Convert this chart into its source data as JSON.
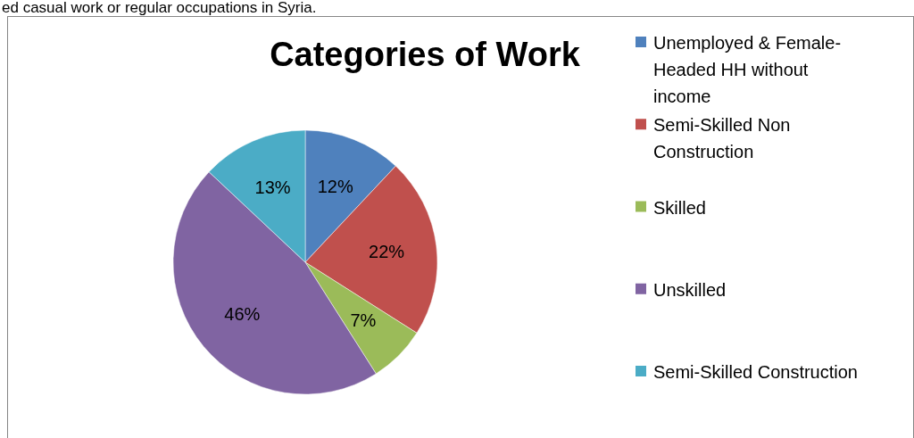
{
  "chart_data": {
    "type": "pie",
    "title": "Categories of Work",
    "annotations": [
      "ed casual work or regular occupations in Syria."
    ],
    "categories": [
      "Unemployed & Female-Headed HH without income",
      "Semi-Skilled Non Construction",
      "Skilled",
      "Unskilled",
      "Semi-Skilled Construction"
    ],
    "values": [
      12,
      22,
      7,
      46,
      13
    ],
    "colors": [
      "#4f81bd",
      "#c0504d",
      "#9bbb59",
      "#8064a2",
      "#4bacc6"
    ],
    "value_labels": [
      "12%",
      "22%",
      "7%",
      "46%",
      "13%"
    ],
    "legend": "right"
  }
}
